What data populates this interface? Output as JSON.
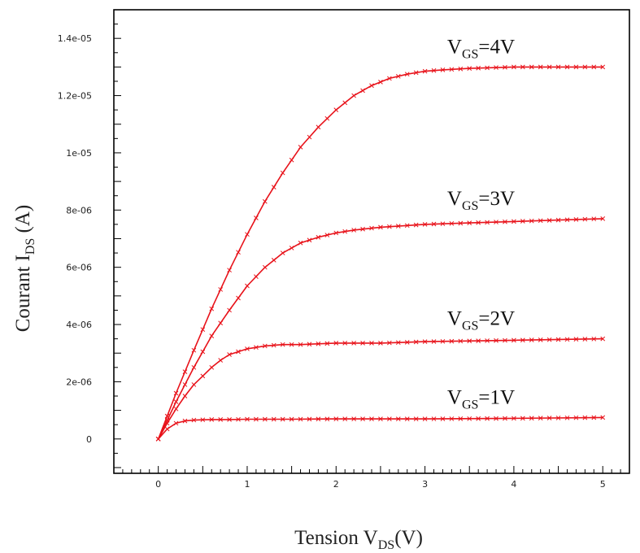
{
  "chart_data": {
    "type": "line",
    "xlabel": {
      "main": "Tension V",
      "sub": "DS",
      "tail": "(V)"
    },
    "ylabel": {
      "main": "Courant I",
      "sub": "DS",
      "tail": " (A)"
    },
    "xlim": [
      -0.5,
      5.3
    ],
    "ylim": [
      -1.2e-06,
      1.5e-05
    ],
    "x_ticks": [
      0,
      1,
      2,
      3,
      4,
      5
    ],
    "x_tick_labels": [
      "0",
      "1",
      "2",
      "3",
      "4",
      "5"
    ],
    "y_ticks": [
      0,
      2e-06,
      4e-06,
      6e-06,
      8e-06,
      1e-05,
      1.2e-05,
      1.4e-05
    ],
    "y_tick_labels": [
      "0",
      "2e-06",
      "4e-06",
      "6e-06",
      "8e-06",
      "1e-05",
      "1.2e-05",
      "1.4e-05"
    ],
    "grid": false,
    "line_color": "#e8121a",
    "series": [
      {
        "label": {
          "main": "V",
          "sub": "GS",
          "tail": "=1V"
        },
        "x": [
          0,
          0.1,
          0.2,
          0.3,
          0.4,
          0.5,
          0.6,
          0.8,
          1.0,
          1.5,
          2.0,
          3.0,
          4.0,
          5.0
        ],
        "values": [
          0,
          3.5e-07,
          5.5e-07,
          6.3e-07,
          6.6e-07,
          6.7e-07,
          6.8e-07,
          6.8e-07,
          6.9e-07,
          6.9e-07,
          7e-07,
          7e-07,
          7.2e-07,
          7.5e-07
        ]
      },
      {
        "label": {
          "main": "V",
          "sub": "GS",
          "tail": "=2V"
        },
        "x": [
          0,
          0.1,
          0.2,
          0.3,
          0.4,
          0.5,
          0.6,
          0.7,
          0.8,
          0.9,
          1.0,
          1.2,
          1.4,
          1.6,
          2.0,
          2.5,
          3.0,
          4.0,
          5.0
        ],
        "values": [
          0,
          5.5e-07,
          1.05e-06,
          1.5e-06,
          1.9e-06,
          2.2e-06,
          2.5e-06,
          2.75e-06,
          2.95e-06,
          3.05e-06,
          3.15e-06,
          3.25e-06,
          3.3e-06,
          3.3e-06,
          3.35e-06,
          3.35e-06,
          3.4e-06,
          3.45e-06,
          3.5e-06
        ]
      },
      {
        "label": {
          "main": "V",
          "sub": "GS",
          "tail": "=3V"
        },
        "x": [
          0,
          0.2,
          0.4,
          0.6,
          0.8,
          1.0,
          1.2,
          1.4,
          1.6,
          1.8,
          2.0,
          2.2,
          2.5,
          3.0,
          3.5,
          4.0,
          4.5,
          5.0
        ],
        "values": [
          0,
          1.3e-06,
          2.5e-06,
          3.6e-06,
          4.5e-06,
          5.35e-06,
          6e-06,
          6.5e-06,
          6.85e-06,
          7.05e-06,
          7.2e-06,
          7.3e-06,
          7.4e-06,
          7.5e-06,
          7.55e-06,
          7.6e-06,
          7.65e-06,
          7.7e-06
        ]
      },
      {
        "label": {
          "main": "V",
          "sub": "GS",
          "tail": "=4V"
        },
        "x": [
          0,
          0.2,
          0.4,
          0.6,
          0.8,
          1.0,
          1.2,
          1.4,
          1.6,
          1.8,
          2.0,
          2.2,
          2.4,
          2.6,
          2.8,
          3.0,
          3.2,
          3.5,
          4.0,
          4.5,
          5.0
        ],
        "values": [
          0,
          1.6e-06,
          3.1e-06,
          4.55e-06,
          5.9e-06,
          7.15e-06,
          8.3e-06,
          9.3e-06,
          1.02e-05,
          1.09e-05,
          1.15e-05,
          1.2e-05,
          1.235e-05,
          1.26e-05,
          1.275e-05,
          1.285e-05,
          1.29e-05,
          1.295e-05,
          1.3e-05,
          1.3e-05,
          1.3e-05
        ]
      }
    ]
  }
}
